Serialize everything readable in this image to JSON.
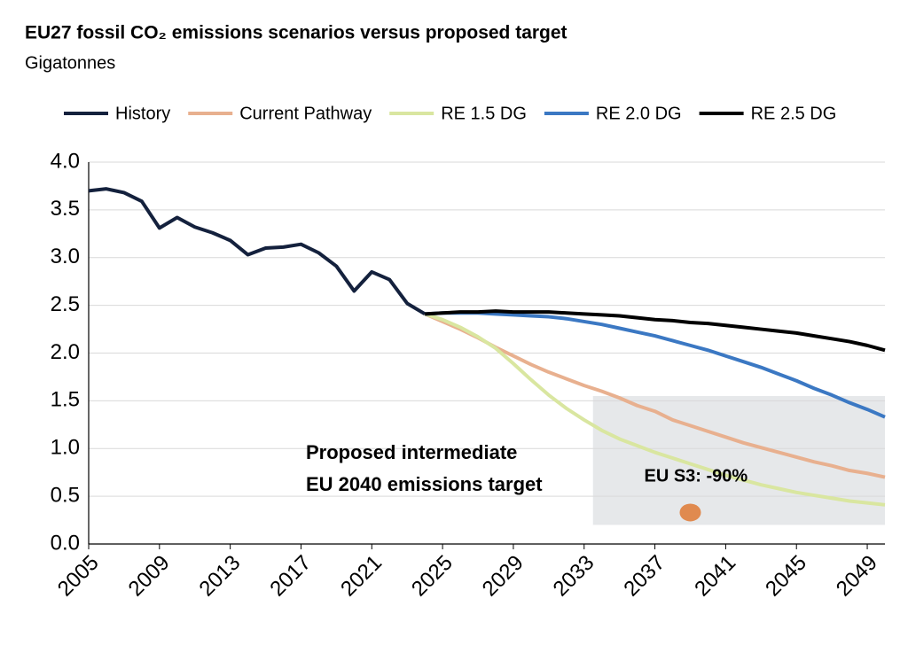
{
  "chart_data": {
    "type": "line",
    "title": "EU27 fossil CO₂ emissions scenarios versus proposed target",
    "subtitle": "Gigatonnes",
    "x": [
      2005,
      2006,
      2007,
      2008,
      2009,
      2010,
      2011,
      2012,
      2013,
      2014,
      2015,
      2016,
      2017,
      2018,
      2019,
      2020,
      2021,
      2022,
      2023,
      2024,
      2025,
      2026,
      2027,
      2028,
      2029,
      2030,
      2031,
      2032,
      2033,
      2034,
      2035,
      2036,
      2037,
      2038,
      2039,
      2040,
      2041,
      2042,
      2043,
      2044,
      2045,
      2046,
      2047,
      2048,
      2049,
      2050
    ],
    "series": [
      {
        "name": "History",
        "color": "#14213d",
        "values": [
          3.7,
          3.72,
          3.68,
          3.59,
          3.31,
          3.42,
          3.32,
          3.26,
          3.18,
          3.03,
          3.1,
          3.11,
          3.14,
          3.05,
          2.91,
          2.65,
          2.85,
          2.77,
          2.52,
          2.41,
          null,
          null,
          null,
          null,
          null,
          null,
          null,
          null,
          null,
          null,
          null,
          null,
          null,
          null,
          null,
          null,
          null,
          null,
          null,
          null,
          null,
          null,
          null,
          null,
          null,
          null
        ]
      },
      {
        "name": "Current Pathway",
        "color": "#e8b08f",
        "values": [
          null,
          null,
          null,
          null,
          null,
          null,
          null,
          null,
          null,
          null,
          null,
          null,
          null,
          null,
          null,
          null,
          null,
          null,
          null,
          2.41,
          2.33,
          2.25,
          2.16,
          2.06,
          1.97,
          1.88,
          1.8,
          1.73,
          1.66,
          1.6,
          1.53,
          1.45,
          1.39,
          1.3,
          1.24,
          1.18,
          1.12,
          1.06,
          1.01,
          0.96,
          0.91,
          0.86,
          0.82,
          0.77,
          0.74,
          0.7
        ]
      },
      {
        "name": "RE 1.5 DG",
        "color": "#d9e6a0",
        "values": [
          null,
          null,
          null,
          null,
          null,
          null,
          null,
          null,
          null,
          null,
          null,
          null,
          null,
          null,
          null,
          null,
          null,
          null,
          null,
          2.41,
          2.35,
          2.27,
          2.17,
          2.05,
          1.89,
          1.72,
          1.56,
          1.42,
          1.3,
          1.19,
          1.1,
          1.03,
          0.96,
          0.9,
          0.84,
          0.78,
          0.72,
          0.67,
          0.62,
          0.58,
          0.54,
          0.51,
          0.48,
          0.45,
          0.43,
          0.41
        ]
      },
      {
        "name": "RE 2.0 DG",
        "color": "#3b78c3",
        "values": [
          null,
          null,
          null,
          null,
          null,
          null,
          null,
          null,
          null,
          null,
          null,
          null,
          null,
          null,
          null,
          null,
          null,
          null,
          null,
          2.41,
          2.42,
          2.42,
          2.42,
          2.41,
          2.4,
          2.39,
          2.38,
          2.36,
          2.33,
          2.3,
          2.26,
          2.22,
          2.18,
          2.13,
          2.08,
          2.03,
          1.97,
          1.91,
          1.85,
          1.78,
          1.71,
          1.63,
          1.56,
          1.48,
          1.41,
          1.33
        ]
      },
      {
        "name": "RE 2.5 DG",
        "color": "#000000",
        "values": [
          null,
          null,
          null,
          null,
          null,
          null,
          null,
          null,
          null,
          null,
          null,
          null,
          null,
          null,
          null,
          null,
          null,
          null,
          null,
          2.41,
          2.42,
          2.43,
          2.43,
          2.44,
          2.43,
          2.43,
          2.43,
          2.42,
          2.41,
          2.4,
          2.39,
          2.37,
          2.35,
          2.34,
          2.32,
          2.31,
          2.29,
          2.27,
          2.25,
          2.23,
          2.21,
          2.18,
          2.15,
          2.12,
          2.08,
          2.03
        ]
      }
    ],
    "xlim": [
      2005,
      2050
    ],
    "xticks": [
      2005,
      2009,
      2013,
      2017,
      2021,
      2025,
      2029,
      2033,
      2037,
      2041,
      2045,
      2049
    ],
    "ylim": [
      0,
      4
    ],
    "yticks": [
      {
        "value": 0,
        "label": "0.0"
      },
      0.5,
      {
        "value": 1,
        "label": "1.0"
      },
      1.5,
      {
        "value": 2,
        "label": "2.0"
      },
      2.5,
      {
        "value": 3,
        "label": "3.0"
      },
      3.5,
      {
        "value": 4,
        "label": "4.0"
      }
    ],
    "grid": true,
    "legend": "top",
    "target_region": {
      "x": [
        2033.5,
        2050
      ],
      "y": [
        0.2,
        1.55
      ],
      "color": "#e6e8ea",
      "label": [
        "Proposed intermediate",
        "EU 2040 emissions target"
      ]
    },
    "target": {
      "name": "EU S3: -90%",
      "x": 2039,
      "value": 0.33,
      "color": "#e08a4f"
    }
  }
}
